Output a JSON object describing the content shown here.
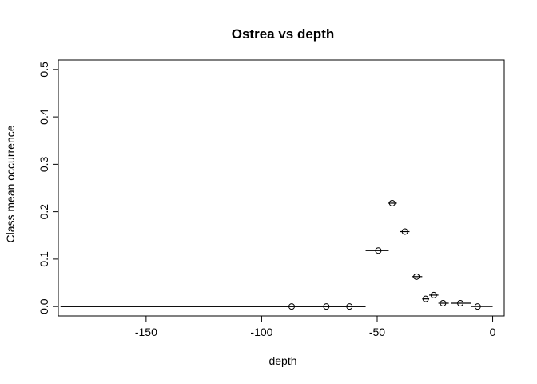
{
  "chart_data": {
    "type": "scatter",
    "title": "Ostrea vs depth",
    "xlabel": "depth",
    "ylabel": "Class mean occurrence",
    "xlim": [
      -188,
      5
    ],
    "ylim": [
      -0.02,
      0.52
    ],
    "xticks": [
      -150,
      -100,
      -50,
      0
    ],
    "yticks": [
      0.0,
      0.1,
      0.2,
      0.3,
      0.4,
      0.5
    ],
    "xtick_labels": [
      "-150",
      "-100",
      "-50",
      "0"
    ],
    "ytick_labels": [
      "0.0",
      "0.1",
      "0.2",
      "0.3",
      "0.4",
      "0.5"
    ],
    "grid": false,
    "legend": "none",
    "points": [
      {
        "x": -87,
        "y": 0.0,
        "x_min": -187,
        "x_max": -55
      },
      {
        "x": -72,
        "y": 0.0,
        "x_min": -187,
        "x_max": -55
      },
      {
        "x": -62,
        "y": 0.0,
        "x_min": -187,
        "x_max": -55
      },
      {
        "x": -49.5,
        "y": 0.118,
        "x_min": -55,
        "x_max": -45
      },
      {
        "x": -43.5,
        "y": 0.218,
        "x_min": -45.5,
        "x_max": -41.5
      },
      {
        "x": -38,
        "y": 0.158,
        "x_min": -40,
        "x_max": -36
      },
      {
        "x": -33,
        "y": 0.063,
        "x_min": -35,
        "x_max": -30.5
      },
      {
        "x": -29,
        "y": 0.016,
        "x_min": -30.5,
        "x_max": -27.5
      },
      {
        "x": -25.5,
        "y": 0.024,
        "x_min": -27.5,
        "x_max": -23.5
      },
      {
        "x": -21.5,
        "y": 0.007,
        "x_min": -23.5,
        "x_max": -19
      },
      {
        "x": -14,
        "y": 0.007,
        "x_min": -18,
        "x_max": -9.5
      },
      {
        "x": -6.5,
        "y": 0.0,
        "x_min": -9.5,
        "x_max": 0
      }
    ]
  }
}
